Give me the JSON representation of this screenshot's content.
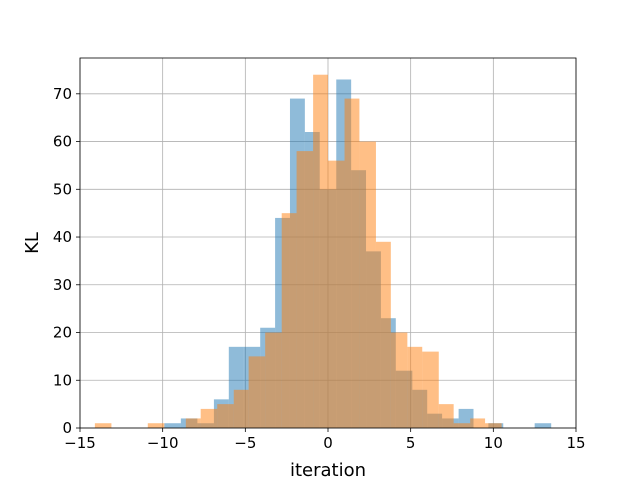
{
  "chart_data": {
    "type": "bar",
    "subtype": "overlapping-histogram",
    "title": "",
    "xlabel": "iteration",
    "ylabel": "KL",
    "xlim": [
      -15,
      15
    ],
    "ylim": [
      0,
      77.5
    ],
    "x_ticks": [
      -15,
      -10,
      -5,
      0,
      5,
      10,
      15
    ],
    "x_tick_labels": [
      "−15",
      "−10",
      "−5",
      "0",
      "5",
      "10",
      "15"
    ],
    "y_ticks": [
      0,
      10,
      20,
      30,
      40,
      50,
      60,
      70
    ],
    "y_tick_labels": [
      "0",
      "10",
      "20",
      "30",
      "40",
      "50",
      "60",
      "70"
    ],
    "grid": true,
    "series": [
      {
        "color": "#1f77b4",
        "opacity": 0.5,
        "bins": [
          {
            "x0": -9.9,
            "x1": -8.9,
            "value": 1
          },
          {
            "x0": -8.9,
            "x1": -7.9,
            "value": 2
          },
          {
            "x0": -7.9,
            "x1": -6.9,
            "value": 1
          },
          {
            "x0": -6.9,
            "x1": -6.0,
            "value": 6
          },
          {
            "x0": -6.0,
            "x1": -5.1,
            "value": 17
          },
          {
            "x0": -5.1,
            "x1": -4.1,
            "value": 17
          },
          {
            "x0": -4.1,
            "x1": -3.2,
            "value": 21
          },
          {
            "x0": -3.2,
            "x1": -2.3,
            "value": 44
          },
          {
            "x0": -2.3,
            "x1": -1.4,
            "value": 69
          },
          {
            "x0": -1.4,
            "x1": -0.5,
            "value": 62
          },
          {
            "x0": -0.5,
            "x1": 0.5,
            "value": 50
          },
          {
            "x0": 0.5,
            "x1": 1.4,
            "value": 73
          },
          {
            "x0": 1.4,
            "x1": 2.3,
            "value": 54
          },
          {
            "x0": 2.3,
            "x1": 3.2,
            "value": 37
          },
          {
            "x0": 3.2,
            "x1": 4.1,
            "value": 23
          },
          {
            "x0": 4.1,
            "x1": 5.1,
            "value": 12
          },
          {
            "x0": 5.1,
            "x1": 6.0,
            "value": 8
          },
          {
            "x0": 6.0,
            "x1": 6.9,
            "value": 3
          },
          {
            "x0": 6.9,
            "x1": 7.9,
            "value": 2
          },
          {
            "x0": 7.9,
            "x1": 8.8,
            "value": 4
          },
          {
            "x0": 9.7,
            "x1": 10.6,
            "value": 1
          },
          {
            "x0": 12.5,
            "x1": 13.5,
            "value": 1
          }
        ]
      },
      {
        "color": "#ff7f0e",
        "opacity": 0.5,
        "bins": [
          {
            "x0": -14.1,
            "x1": -13.1,
            "value": 1
          },
          {
            "x0": -10.9,
            "x1": -9.9,
            "value": 1
          },
          {
            "x0": -8.6,
            "x1": -7.7,
            "value": 2
          },
          {
            "x0": -7.7,
            "x1": -6.7,
            "value": 4
          },
          {
            "x0": -6.7,
            "x1": -5.7,
            "value": 5
          },
          {
            "x0": -5.7,
            "x1": -4.8,
            "value": 8
          },
          {
            "x0": -4.8,
            "x1": -3.8,
            "value": 15
          },
          {
            "x0": -3.8,
            "x1": -2.8,
            "value": 20
          },
          {
            "x0": -2.8,
            "x1": -1.9,
            "value": 45
          },
          {
            "x0": -1.9,
            "x1": -0.9,
            "value": 58
          },
          {
            "x0": -0.9,
            "x1": 0.0,
            "value": 74
          },
          {
            "x0": 0.0,
            "x1": 1.0,
            "value": 56
          },
          {
            "x0": 1.0,
            "x1": 1.9,
            "value": 69
          },
          {
            "x0": 1.9,
            "x1": 2.9,
            "value": 60
          },
          {
            "x0": 2.9,
            "x1": 3.8,
            "value": 39
          },
          {
            "x0": 3.8,
            "x1": 4.8,
            "value": 20
          },
          {
            "x0": 4.8,
            "x1": 5.7,
            "value": 17
          },
          {
            "x0": 5.7,
            "x1": 6.7,
            "value": 16
          },
          {
            "x0": 6.7,
            "x1": 7.6,
            "value": 5
          },
          {
            "x0": 7.6,
            "x1": 8.6,
            "value": 1
          },
          {
            "x0": 8.6,
            "x1": 9.5,
            "value": 2
          },
          {
            "x0": 9.5,
            "x1": 10.5,
            "value": 1
          }
        ]
      }
    ]
  }
}
